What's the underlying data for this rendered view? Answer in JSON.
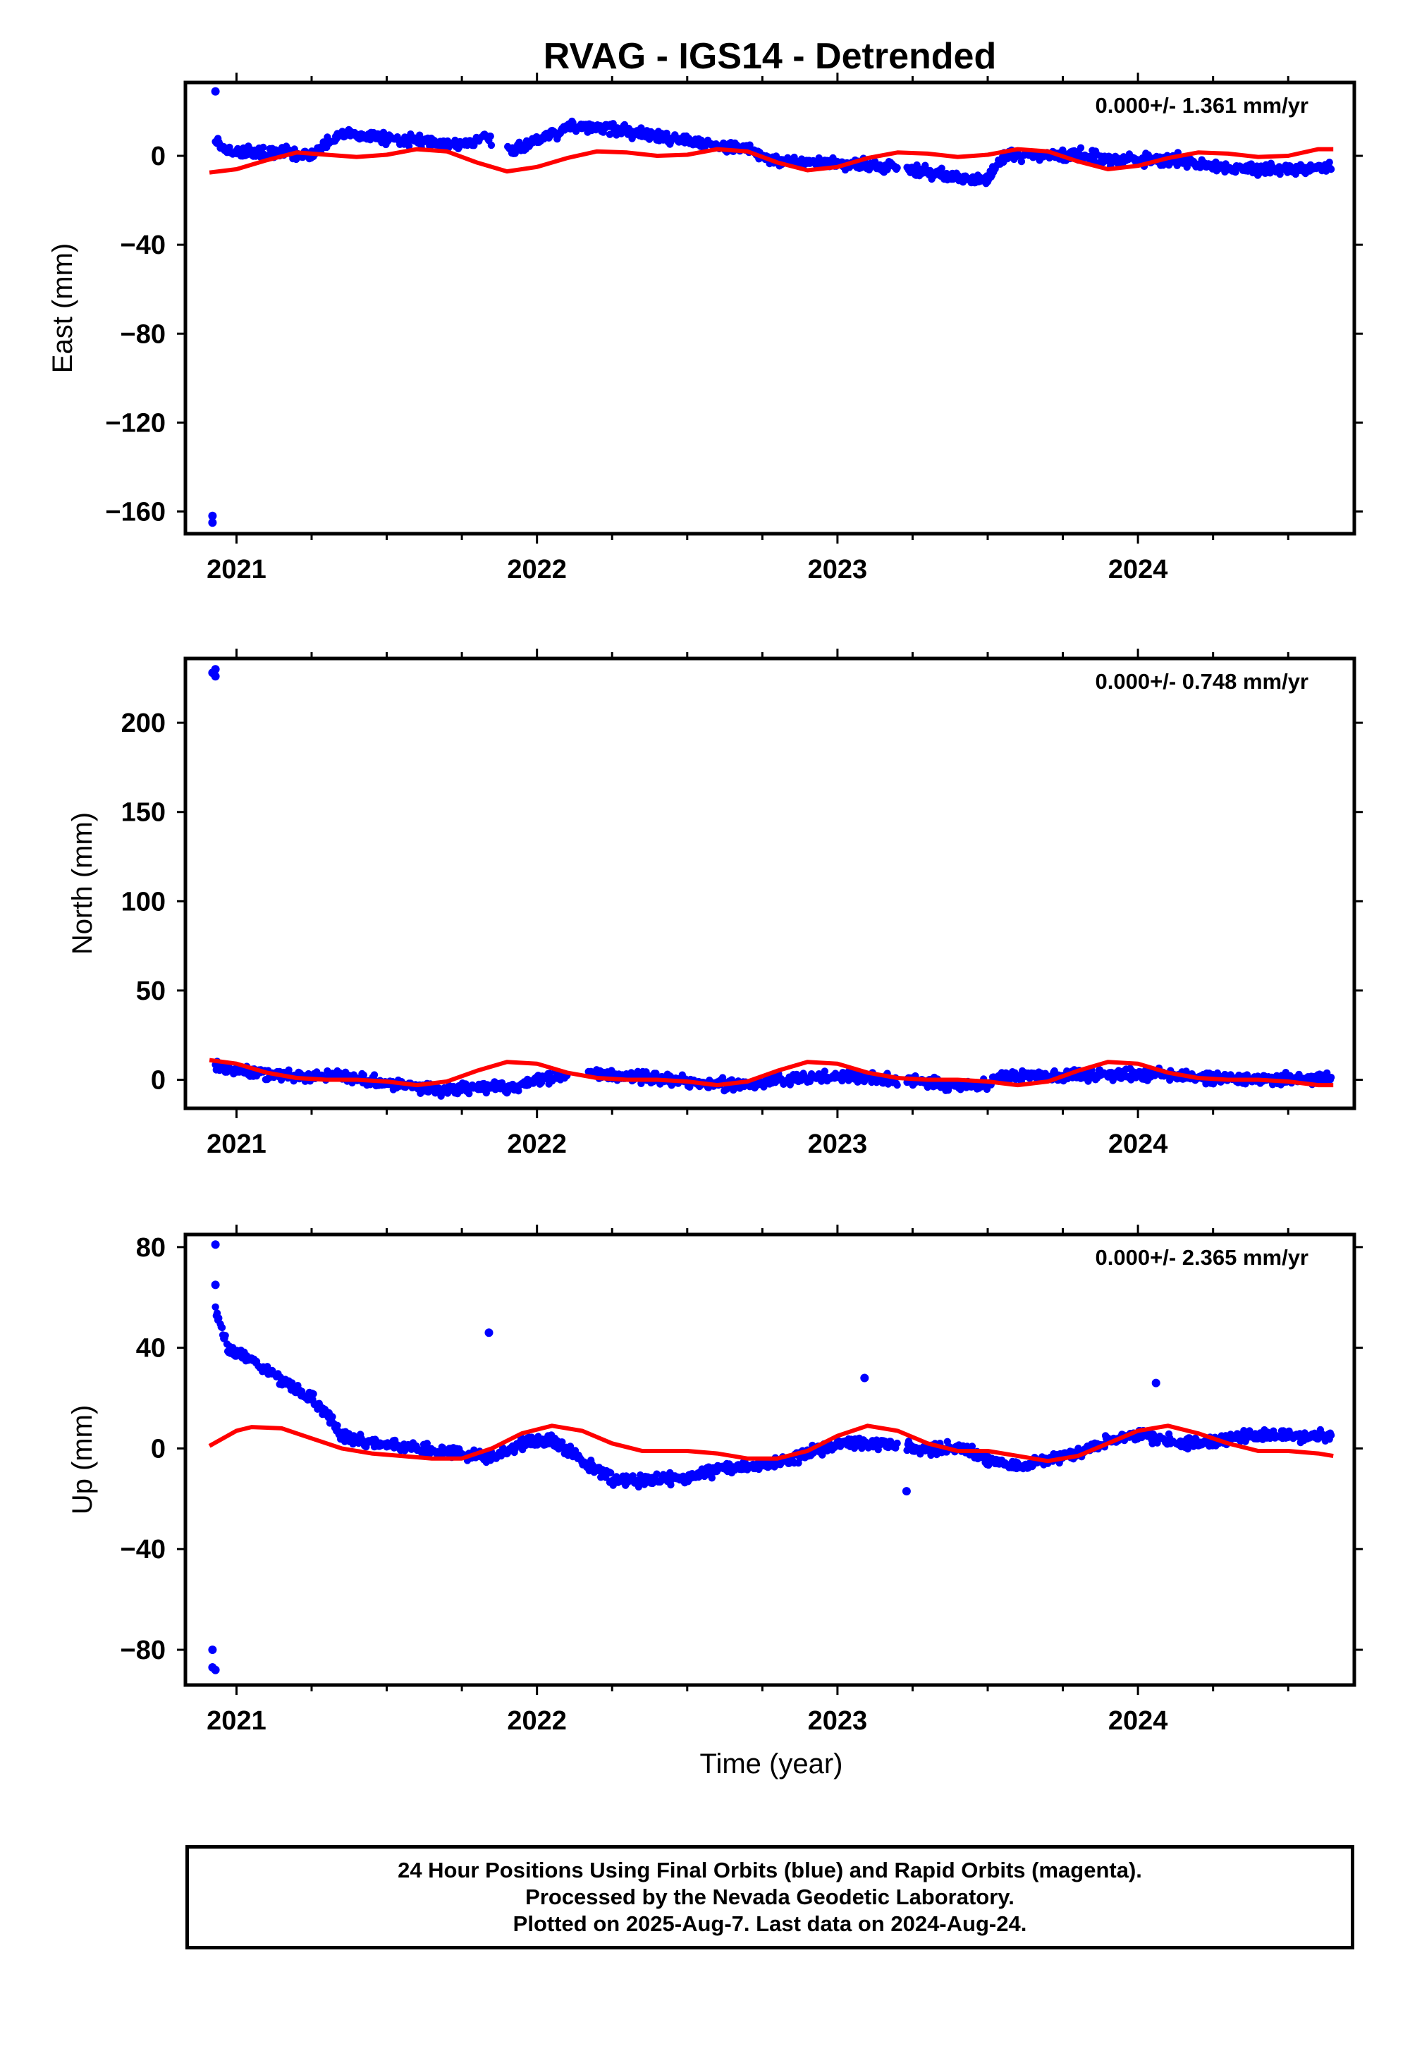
{
  "title": "RVAG - IGS14 - Detrended",
  "xlabel": "Time (year)",
  "footer": {
    "line1": "24 Hour Positions Using Final Orbits (blue) and Rapid Orbits (magenta).",
    "line2": "Processed by the Nevada Geodetic Laboratory.",
    "line3": "Plotted on 2025-Aug-7. Last data on 2024-Aug-24."
  },
  "colors": {
    "points": "#0000ff",
    "model": "#ff0000",
    "axes": "#000000"
  },
  "chart_data": [
    {
      "type": "scatter",
      "name": "east",
      "ylabel": "East (mm)",
      "rate": "0.000+/- 1.361 mm/yr",
      "xlim": [
        2020.83,
        2024.72
      ],
      "ylim": [
        -170,
        33
      ],
      "yticks": [
        0,
        -40,
        -80,
        -120,
        -160
      ],
      "xticks": [
        2021,
        2022,
        2023,
        2024
      ],
      "outliers": [
        [
          2020.92,
          -162
        ],
        [
          2020.92,
          -165
        ],
        [
          2020.93,
          29
        ]
      ],
      "scatter_profile": [
        [
          2020.92,
          8
        ],
        [
          2020.96,
          2
        ],
        [
          2021.1,
          2
        ],
        [
          2021.25,
          0
        ],
        [
          2021.35,
          10
        ],
        [
          2021.55,
          7
        ],
        [
          2021.75,
          5
        ],
        [
          2021.83,
          8
        ],
        [
          2021.92,
          2
        ],
        [
          2022.02,
          8
        ],
        [
          2022.1,
          13
        ],
        [
          2022.15,
          13
        ],
        [
          2022.3,
          11
        ],
        [
          2022.55,
          6
        ],
        [
          2022.7,
          3
        ],
        [
          2022.78,
          -2
        ],
        [
          2022.9,
          -3
        ],
        [
          2023.1,
          -4
        ],
        [
          2023.25,
          -6
        ],
        [
          2023.4,
          -10
        ],
        [
          2023.5,
          -11
        ],
        [
          2023.55,
          0
        ],
        [
          2023.8,
          0
        ],
        [
          2024.0,
          -2
        ],
        [
          2024.15,
          -2
        ],
        [
          2024.3,
          -6
        ],
        [
          2024.5,
          -6
        ],
        [
          2024.65,
          -5
        ]
      ],
      "model_profile": [
        [
          2020.91,
          -7.5
        ],
        [
          2021.0,
          -6
        ],
        [
          2021.1,
          -2
        ],
        [
          2021.2,
          1.5
        ],
        [
          2021.3,
          0.5
        ],
        [
          2021.4,
          -0.5
        ],
        [
          2021.5,
          0.5
        ],
        [
          2021.6,
          3
        ],
        [
          2021.7,
          2
        ],
        [
          2021.8,
          -3
        ],
        [
          2021.9,
          -7
        ],
        [
          2022.0,
          -5
        ],
        [
          2022.1,
          -1
        ],
        [
          2022.2,
          2
        ],
        [
          2022.3,
          1.5
        ],
        [
          2022.4,
          0
        ],
        [
          2022.5,
          0.5
        ],
        [
          2022.6,
          3
        ],
        [
          2022.7,
          2
        ],
        [
          2022.8,
          -3
        ],
        [
          2022.9,
          -6.5
        ],
        [
          2023.0,
          -5
        ],
        [
          2023.1,
          -1
        ],
        [
          2023.2,
          1.5
        ],
        [
          2023.3,
          1
        ],
        [
          2023.4,
          -0.5
        ],
        [
          2023.5,
          0.5
        ],
        [
          2023.6,
          3
        ],
        [
          2023.7,
          2
        ],
        [
          2023.8,
          -2.5
        ],
        [
          2023.9,
          -6
        ],
        [
          2024.0,
          -4.5
        ],
        [
          2024.1,
          -1
        ],
        [
          2024.2,
          1.5
        ],
        [
          2024.3,
          1
        ],
        [
          2024.4,
          -0.5
        ],
        [
          2024.5,
          0
        ],
        [
          2024.6,
          3
        ],
        [
          2024.65,
          3
        ]
      ],
      "gaps": [
        [
          2021.85,
          2021.9
        ],
        [
          2023.2,
          2023.23
        ]
      ]
    },
    {
      "type": "scatter",
      "name": "north",
      "ylabel": "North (mm)",
      "rate": "0.000+/- 0.748 mm/yr",
      "xlim": [
        2020.83,
        2024.72
      ],
      "ylim": [
        -16,
        236
      ],
      "yticks": [
        0,
        50,
        100,
        150,
        200
      ],
      "xticks": [
        2021,
        2022,
        2023,
        2024
      ],
      "outliers": [
        [
          2020.92,
          228
        ],
        [
          2020.93,
          226
        ],
        [
          2020.93,
          230
        ]
      ],
      "scatter_profile": [
        [
          2020.92,
          8
        ],
        [
          2021.0,
          5
        ],
        [
          2021.2,
          2
        ],
        [
          2021.35,
          2
        ],
        [
          2021.5,
          -2
        ],
        [
          2021.6,
          -4
        ],
        [
          2021.7,
          -6
        ],
        [
          2021.8,
          -4
        ],
        [
          2021.92,
          -4
        ],
        [
          2022.0,
          0
        ],
        [
          2022.1,
          3
        ],
        [
          2022.2,
          3
        ],
        [
          2022.3,
          2
        ],
        [
          2022.45,
          0
        ],
        [
          2022.6,
          -3
        ],
        [
          2022.7,
          -3
        ],
        [
          2022.8,
          0
        ],
        [
          2022.9,
          1
        ],
        [
          2023.0,
          2
        ],
        [
          2023.1,
          1
        ],
        [
          2023.25,
          -1
        ],
        [
          2023.4,
          -3
        ],
        [
          2023.5,
          -3
        ],
        [
          2023.55,
          2
        ],
        [
          2023.7,
          2
        ],
        [
          2023.85,
          3
        ],
        [
          2024.0,
          3
        ],
        [
          2024.15,
          2
        ],
        [
          2024.3,
          0
        ],
        [
          2024.5,
          0
        ],
        [
          2024.65,
          1
        ]
      ],
      "model_profile": [
        [
          2020.91,
          11
        ],
        [
          2021.0,
          9
        ],
        [
          2021.1,
          4
        ],
        [
          2021.2,
          1
        ],
        [
          2021.3,
          0
        ],
        [
          2021.4,
          0
        ],
        [
          2021.5,
          -1
        ],
        [
          2021.6,
          -3
        ],
        [
          2021.7,
          -1
        ],
        [
          2021.8,
          5
        ],
        [
          2021.9,
          10
        ],
        [
          2022.0,
          9
        ],
        [
          2022.1,
          4
        ],
        [
          2022.2,
          1
        ],
        [
          2022.3,
          0
        ],
        [
          2022.4,
          0
        ],
        [
          2022.5,
          -1
        ],
        [
          2022.6,
          -3
        ],
        [
          2022.7,
          -1
        ],
        [
          2022.8,
          5
        ],
        [
          2022.9,
          10
        ],
        [
          2023.0,
          9
        ],
        [
          2023.1,
          4
        ],
        [
          2023.2,
          1
        ],
        [
          2023.3,
          0
        ],
        [
          2023.4,
          0
        ],
        [
          2023.5,
          -1
        ],
        [
          2023.6,
          -3
        ],
        [
          2023.7,
          -1
        ],
        [
          2023.8,
          5
        ],
        [
          2023.9,
          10
        ],
        [
          2024.0,
          9
        ],
        [
          2024.1,
          4
        ],
        [
          2024.2,
          1
        ],
        [
          2024.3,
          0
        ],
        [
          2024.4,
          0
        ],
        [
          2024.5,
          -1
        ],
        [
          2024.6,
          -3
        ],
        [
          2024.65,
          -3
        ]
      ],
      "gaps": [
        [
          2022.1,
          2022.17
        ],
        [
          2023.2,
          2023.23
        ]
      ]
    },
    {
      "type": "scatter",
      "name": "up",
      "ylabel": "Up (mm)",
      "rate": "0.000+/- 2.365 mm/yr",
      "xlim": [
        2020.83,
        2024.72
      ],
      "ylim": [
        -94,
        85
      ],
      "yticks": [
        80,
        40,
        0,
        -40,
        -80
      ],
      "xticks": [
        2021,
        2022,
        2023,
        2024
      ],
      "outliers": [
        [
          2020.92,
          -80
        ],
        [
          2020.92,
          -87
        ],
        [
          2020.93,
          -88
        ],
        [
          2020.93,
          81
        ],
        [
          2020.93,
          65
        ],
        [
          2021.84,
          46
        ],
        [
          2023.09,
          28
        ],
        [
          2024.06,
          26
        ],
        [
          2023.23,
          -17
        ]
      ],
      "scatter_profile": [
        [
          2020.93,
          55
        ],
        [
          2020.97,
          40
        ],
        [
          2021.05,
          35
        ],
        [
          2021.15,
          27
        ],
        [
          2021.25,
          20
        ],
        [
          2021.3,
          14
        ],
        [
          2021.35,
          5
        ],
        [
          2021.45,
          2
        ],
        [
          2021.6,
          0
        ],
        [
          2021.75,
          -2
        ],
        [
          2021.85,
          -4
        ],
        [
          2021.95,
          2
        ],
        [
          2022.05,
          4
        ],
        [
          2022.15,
          -5
        ],
        [
          2022.25,
          -12
        ],
        [
          2022.35,
          -13
        ],
        [
          2022.5,
          -12
        ],
        [
          2022.6,
          -8
        ],
        [
          2022.7,
          -7
        ],
        [
          2022.8,
          -6
        ],
        [
          2022.9,
          -2
        ],
        [
          2023.0,
          2
        ],
        [
          2023.15,
          2
        ],
        [
          2023.25,
          0
        ],
        [
          2023.4,
          0
        ],
        [
          2023.5,
          -4
        ],
        [
          2023.6,
          -8
        ],
        [
          2023.7,
          -4
        ],
        [
          2023.8,
          -2
        ],
        [
          2023.9,
          3
        ],
        [
          2024.0,
          6
        ],
        [
          2024.1,
          3
        ],
        [
          2024.2,
          2
        ],
        [
          2024.35,
          5
        ],
        [
          2024.5,
          5
        ],
        [
          2024.65,
          5
        ]
      ],
      "model_profile": [
        [
          2020.91,
          1
        ],
        [
          2021.0,
          7
        ],
        [
          2021.05,
          8.5
        ],
        [
          2021.15,
          8
        ],
        [
          2021.25,
          4
        ],
        [
          2021.35,
          0
        ],
        [
          2021.45,
          -2
        ],
        [
          2021.55,
          -3
        ],
        [
          2021.65,
          -4
        ],
        [
          2021.75,
          -4
        ],
        [
          2021.85,
          0
        ],
        [
          2021.95,
          6
        ],
        [
          2022.05,
          9
        ],
        [
          2022.15,
          7
        ],
        [
          2022.25,
          2
        ],
        [
          2022.35,
          -1
        ],
        [
          2022.5,
          -1
        ],
        [
          2022.6,
          -2
        ],
        [
          2022.7,
          -4
        ],
        [
          2022.8,
          -4
        ],
        [
          2022.9,
          -1
        ],
        [
          2023.0,
          5
        ],
        [
          2023.1,
          9
        ],
        [
          2023.2,
          7
        ],
        [
          2023.3,
          2
        ],
        [
          2023.4,
          -1
        ],
        [
          2023.5,
          -1
        ],
        [
          2023.6,
          -3
        ],
        [
          2023.7,
          -5
        ],
        [
          2023.8,
          -3
        ],
        [
          2023.9,
          2
        ],
        [
          2024.0,
          7
        ],
        [
          2024.1,
          9
        ],
        [
          2024.2,
          6
        ],
        [
          2024.3,
          2
        ],
        [
          2024.4,
          -1
        ],
        [
          2024.5,
          -1
        ],
        [
          2024.6,
          -2
        ],
        [
          2024.65,
          -3
        ]
      ],
      "gaps": [
        [
          2023.2,
          2023.23
        ]
      ]
    }
  ]
}
